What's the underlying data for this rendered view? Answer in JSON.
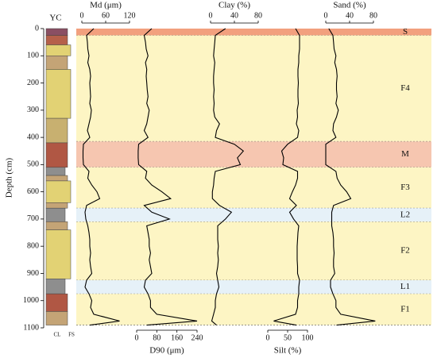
{
  "chart_data": {
    "type": "line",
    "ylabel": "Depth (cm)",
    "ylim": [
      0,
      1100
    ],
    "yticks": [
      0,
      100,
      200,
      300,
      400,
      500,
      600,
      700,
      800,
      900,
      1000,
      1100
    ],
    "column_label": "YC",
    "column_ticks": [
      "CL",
      "FS"
    ],
    "depth": [
      0,
      25,
      50,
      75,
      100,
      125,
      150,
      175,
      200,
      225,
      250,
      275,
      300,
      325,
      350,
      375,
      400,
      425,
      450,
      475,
      500,
      525,
      550,
      575,
      600,
      625,
      650,
      675,
      700,
      725,
      750,
      775,
      800,
      825,
      850,
      875,
      900,
      925,
      950,
      975,
      1000,
      1025,
      1050,
      1075,
      1090
    ],
    "zones": [
      {
        "label": "S",
        "top": 0,
        "bottom": 25,
        "color": "#f2a07e"
      },
      {
        "label": "F4",
        "top": 25,
        "bottom": 415,
        "color": "#fdf5c4"
      },
      {
        "label": "M",
        "top": 415,
        "bottom": 510,
        "color": "#f6c6b0"
      },
      {
        "label": "F3",
        "top": 510,
        "bottom": 660,
        "color": "#fdf5c4"
      },
      {
        "label": "L2",
        "top": 660,
        "bottom": 710,
        "color": "#e6f1f8"
      },
      {
        "label": "F2",
        "top": 710,
        "bottom": 925,
        "color": "#fdf5c4"
      },
      {
        "label": "L1",
        "top": 925,
        "bottom": 975,
        "color": "#e6f1f8"
      },
      {
        "label": "F1",
        "top": 975,
        "bottom": 1090,
        "color": "#fdf5c4"
      }
    ],
    "lithology": [
      {
        "top": 0,
        "bottom": 25,
        "color": "#8a4f63"
      },
      {
        "top": 25,
        "bottom": 60,
        "color": "#b5604a"
      },
      {
        "top": 60,
        "bottom": 100,
        "color": "#e2d274"
      },
      {
        "top": 100,
        "bottom": 150,
        "color": "#c4a476"
      },
      {
        "top": 150,
        "bottom": 330,
        "color": "#e2d274"
      },
      {
        "top": 330,
        "bottom": 420,
        "color": "#c8b070"
      },
      {
        "top": 420,
        "bottom": 510,
        "color": "#b05744"
      },
      {
        "top": 510,
        "bottom": 540,
        "color": "#8e8e8e"
      },
      {
        "top": 540,
        "bottom": 560,
        "color": "#c4a476"
      },
      {
        "top": 560,
        "bottom": 640,
        "color": "#e2d274"
      },
      {
        "top": 640,
        "bottom": 660,
        "color": "#c4a476"
      },
      {
        "top": 660,
        "bottom": 710,
        "color": "#8e8e8e"
      },
      {
        "top": 710,
        "bottom": 740,
        "color": "#c4a476"
      },
      {
        "top": 740,
        "bottom": 920,
        "color": "#e2d274"
      },
      {
        "top": 920,
        "bottom": 975,
        "color": "#8e8e8e"
      },
      {
        "top": 975,
        "bottom": 1040,
        "color": "#b05744"
      },
      {
        "top": 1040,
        "bottom": 1090,
        "color": "#c4a476"
      }
    ],
    "series": [
      {
        "name": "Md (μm)",
        "color": "#000000",
        "xlim": [
          0,
          120
        ],
        "xticks": [
          0,
          60,
          120
        ],
        "axis": "top",
        "values": [
          30,
          12,
          14,
          15,
          18,
          15,
          20,
          22,
          20,
          21,
          22,
          20,
          24,
          22,
          18,
          14,
          20,
          4,
          3,
          3,
          4,
          18,
          15,
          25,
          38,
          45,
          12,
          8,
          10,
          15,
          18,
          20,
          20,
          22,
          20,
          22,
          25,
          12,
          8,
          18,
          25,
          22,
          30,
          95,
          20
        ]
      },
      {
        "name": "D90 (μm)",
        "color": "#000000",
        "xlim": [
          0,
          240
        ],
        "xticks": [
          0,
          80,
          160,
          240
        ],
        "axis": "bottom",
        "values": [
          60,
          30,
          35,
          38,
          45,
          35,
          40,
          38,
          40,
          42,
          45,
          40,
          50,
          45,
          40,
          30,
          45,
          8,
          6,
          6,
          8,
          40,
          35,
          60,
          100,
          135,
          30,
          60,
          130,
          40,
          45,
          50,
          50,
          55,
          50,
          55,
          60,
          35,
          30,
          45,
          55,
          55,
          80,
          240,
          40
        ]
      },
      {
        "name": "Clay (%)",
        "color": "#000000",
        "xlim": [
          0,
          80
        ],
        "xticks": [
          0,
          40,
          80
        ],
        "axis": "top",
        "values": [
          25,
          8,
          7,
          6,
          5,
          7,
          6,
          5,
          5,
          6,
          5,
          6,
          5,
          7,
          15,
          10,
          8,
          40,
          55,
          45,
          50,
          8,
          6,
          5,
          3,
          3,
          15,
          35,
          25,
          12,
          12,
          12,
          13,
          12,
          13,
          12,
          10,
          12,
          14,
          10,
          8,
          8,
          5,
          2,
          10
        ]
      },
      {
        "name": "Silt (%)",
        "color": "#000000",
        "xlim": [
          0,
          100
        ],
        "xticks": [
          0,
          50,
          100
        ],
        "axis": "bottom",
        "values": [
          70,
          80,
          80,
          80,
          78,
          78,
          76,
          76,
          77,
          76,
          76,
          77,
          74,
          75,
          72,
          78,
          75,
          50,
          35,
          40,
          38,
          75,
          75,
          70,
          62,
          55,
          72,
          55,
          65,
          78,
          76,
          75,
          74,
          74,
          74,
          75,
          75,
          80,
          78,
          78,
          75,
          75,
          70,
          15,
          72
        ]
      },
      {
        "name": "Sand (%)",
        "color": "#000000",
        "xlim": [
          0,
          80
        ],
        "xticks": [
          0,
          40,
          80
        ],
        "axis": "top",
        "values": [
          5,
          12,
          13,
          14,
          17,
          15,
          18,
          19,
          18,
          18,
          19,
          17,
          21,
          18,
          13,
          12,
          17,
          0,
          0,
          0,
          0,
          17,
          19,
          25,
          35,
          42,
          13,
          10,
          10,
          10,
          12,
          13,
          13,
          14,
          13,
          13,
          15,
          8,
          8,
          12,
          17,
          17,
          25,
          83,
          18
        ]
      }
    ]
  }
}
